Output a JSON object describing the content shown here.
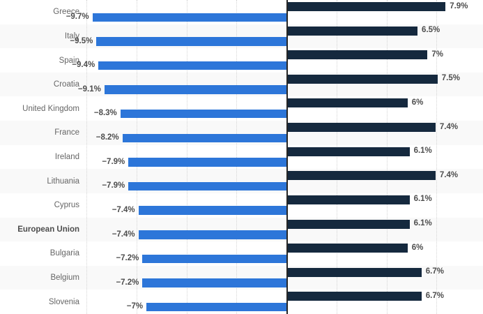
{
  "chart_data": {
    "type": "bar",
    "orientation": "horizontal-diverging",
    "title": "",
    "xlabel": "",
    "ylabel": "",
    "categories": [
      "Greece",
      "Italy",
      "Spain",
      "Croatia",
      "United Kingdom",
      "France",
      "Ireland",
      "Lithuania",
      "Cyprus",
      "European Union",
      "Bulgaria",
      "Belgium",
      "Slovenia"
    ],
    "series": [
      {
        "name": "negative-left-blue",
        "color": "#2d76d9",
        "values": [
          -9.7,
          -9.5,
          -9.4,
          -9.1,
          -8.3,
          -8.2,
          -7.9,
          -7.9,
          -7.4,
          -7.4,
          -7.2,
          -7.2,
          -7.0
        ],
        "labels": [
          "−9.7%",
          "−9.5%",
          "−9.4%",
          "−9.1%",
          "−8.3%",
          "−8.2%",
          "−7.9%",
          "−7.9%",
          "−7.4%",
          "−7.4%",
          "−7.2%",
          "−7.2%",
          "−7%"
        ]
      },
      {
        "name": "positive-right-navy",
        "color": "#15293e",
        "values": [
          7.9,
          6.5,
          7.0,
          7.5,
          6.0,
          7.4,
          6.1,
          7.4,
          6.1,
          6.1,
          6.0,
          6.7,
          6.7
        ],
        "labels": [
          "7.9%",
          "6.5%",
          "7%",
          "7.5%",
          "6%",
          "7.4%",
          "6.1%",
          "7.4%",
          "6.1%",
          "6.1%",
          "6%",
          "6.7%",
          "6.7%"
        ]
      }
    ],
    "highlighted_category": "European Union",
    "x_gridlines": [
      -10,
      -7.5,
      -5,
      -2.5,
      2.5,
      5,
      7.5
    ],
    "xlim": [
      -14.3,
      9.8
    ],
    "grid": "dotted-vertical",
    "legend_position": "none",
    "zero_axis": true
  },
  "colors": {
    "negative_bar": "#2d76d9",
    "positive_bar": "#15293e",
    "stripe": "#f9f9f9",
    "gridline": "#d4d4d4",
    "axis_line": "#262626",
    "country_label": "#666666",
    "value_label": "#4d4d4d"
  }
}
